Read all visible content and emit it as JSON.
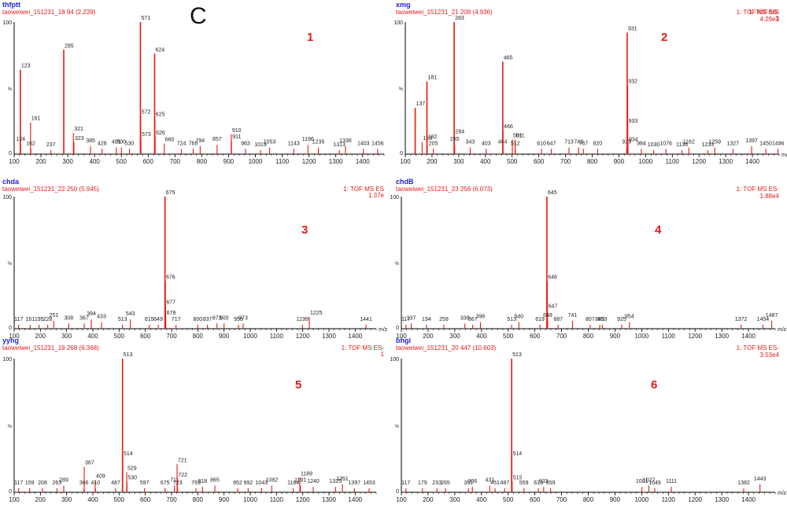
{
  "figure_letter": "C",
  "colors": {
    "blue": "#1f1fd6",
    "red": "#e41a1c",
    "peak": "#e8180c",
    "axis": "#000000",
    "text": "#222222"
  },
  "chart_data": [
    {
      "type": "bar",
      "sample": "thfptt",
      "file_label": "taoweiwei_151231_18 94 (2.239)",
      "scan_label": "",
      "scan_label2": "",
      "panel_number": "1",
      "yaxis_top": "100",
      "yaxis_mid": "%",
      "yaxis_zero": "0",
      "xunit": "",
      "xlim": [
        100,
        1480
      ],
      "ylim": [
        0,
        100
      ],
      "xticks": [
        100,
        200,
        300,
        400,
        500,
        600,
        700,
        800,
        900,
        1000,
        1100,
        1200,
        1300,
        1400
      ],
      "peaks": [
        {
          "x": 123,
          "y": 64
        },
        {
          "x": 124,
          "y": 7
        },
        {
          "x": 161,
          "y": 24
        },
        {
          "x": 162,
          "y": 4
        },
        {
          "x": 237,
          "y": 3
        },
        {
          "x": 285,
          "y": 79
        },
        {
          "x": 321,
          "y": 16
        },
        {
          "x": 323,
          "y": 9
        },
        {
          "x": 385,
          "y": 6
        },
        {
          "x": 428,
          "y": 4
        },
        {
          "x": 481,
          "y": 5
        },
        {
          "x": 500,
          "y": 5
        },
        {
          "x": 530,
          "y": 4
        },
        {
          "x": 571,
          "y": 100
        },
        {
          "x": 572,
          "y": 29
        },
        {
          "x": 573,
          "y": 12
        },
        {
          "x": 624,
          "y": 76
        },
        {
          "x": 625,
          "y": 27
        },
        {
          "x": 626,
          "y": 13
        },
        {
          "x": 660,
          "y": 8
        },
        {
          "x": 724,
          "y": 4
        },
        {
          "x": 768,
          "y": 4
        },
        {
          "x": 794,
          "y": 6
        },
        {
          "x": 857,
          "y": 7
        },
        {
          "x": 910,
          "y": 15
        },
        {
          "x": 911,
          "y": 10
        },
        {
          "x": 963,
          "y": 4
        },
        {
          "x": 1019,
          "y": 3
        },
        {
          "x": 1053,
          "y": 5
        },
        {
          "x": 1143,
          "y": 4
        },
        {
          "x": 1196,
          "y": 7
        },
        {
          "x": 1235,
          "y": 5
        },
        {
          "x": 1313,
          "y": 3
        },
        {
          "x": 1336,
          "y": 6
        },
        {
          "x": 1403,
          "y": 4
        },
        {
          "x": 1456,
          "y": 4
        }
      ]
    },
    {
      "type": "bar",
      "sample": "xmg",
      "file_label": "taoweiwei_151231_21 208 (4.936)",
      "scan_label": "1: TOF MS ",
      "scan_label2": "1",
      "tof_right": "1: TOF MS ES-",
      "intensity": "4.29e3",
      "panel_number": "2",
      "yaxis_top": "100",
      "yaxis_mid": "%",
      "yaxis_zero": "0",
      "xunit": "m/z",
      "xlim": [
        100,
        1500
      ],
      "ylim": [
        0,
        100
      ],
      "xticks": [
        100,
        200,
        300,
        400,
        500,
        600,
        700,
        800,
        900,
        1000,
        1100,
        1200,
        1300,
        1400
      ],
      "peaks": [
        {
          "x": 137,
          "y": 35
        },
        {
          "x": 163,
          "y": 9
        },
        {
          "x": 181,
          "y": 55
        },
        {
          "x": 182,
          "y": 10
        },
        {
          "x": 205,
          "y": 4
        },
        {
          "x": 283,
          "y": 100
        },
        {
          "x": 284,
          "y": 14
        },
        {
          "x": 285,
          "y": 7
        },
        {
          "x": 343,
          "y": 5
        },
        {
          "x": 403,
          "y": 4
        },
        {
          "x": 464,
          "y": 5
        },
        {
          "x": 465,
          "y": 70
        },
        {
          "x": 466,
          "y": 18
        },
        {
          "x": 501,
          "y": 11
        },
        {
          "x": 511,
          "y": 11
        },
        {
          "x": 512,
          "y": 4
        },
        {
          "x": 610,
          "y": 4
        },
        {
          "x": 647,
          "y": 4
        },
        {
          "x": 713,
          "y": 5
        },
        {
          "x": 749,
          "y": 5
        },
        {
          "x": 767,
          "y": 4
        },
        {
          "x": 820,
          "y": 4
        },
        {
          "x": 929,
          "y": 5
        },
        {
          "x": 931,
          "y": 92
        },
        {
          "x": 932,
          "y": 52
        },
        {
          "x": 933,
          "y": 22
        },
        {
          "x": 934,
          "y": 8
        },
        {
          "x": 984,
          "y": 4
        },
        {
          "x": 1030,
          "y": 3
        },
        {
          "x": 1076,
          "y": 4
        },
        {
          "x": 1136,
          "y": 3
        },
        {
          "x": 1162,
          "y": 5
        },
        {
          "x": 1233,
          "y": 3
        },
        {
          "x": 1259,
          "y": 5
        },
        {
          "x": 1327,
          "y": 4
        },
        {
          "x": 1397,
          "y": 6
        },
        {
          "x": 1450,
          "y": 4
        },
        {
          "x": 1496,
          "y": 4
        }
      ]
    },
    {
      "type": "bar",
      "sample": "chda",
      "file_label": "taoweiwei_151231_22 250 (5.945)",
      "scan_label": "1: TOF MS ES",
      "scan_label2": "1.37e",
      "panel_number": "3",
      "yaxis_top": "100",
      "yaxis_mid": "%",
      "yaxis_zero": "0",
      "xunit": "m/z",
      "xlim": [
        100,
        1480
      ],
      "ylim": [
        0,
        100
      ],
      "xticks": [
        100,
        200,
        300,
        400,
        500,
        600,
        700,
        800,
        900,
        1000,
        1100,
        1200,
        1300,
        1400
      ],
      "peaks": [
        {
          "x": 117,
          "y": 3
        },
        {
          "x": 161,
          "y": 3
        },
        {
          "x": 195,
          "y": 3
        },
        {
          "x": 228,
          "y": 3
        },
        {
          "x": 251,
          "y": 6
        },
        {
          "x": 308,
          "y": 4
        },
        {
          "x": 367,
          "y": 4
        },
        {
          "x": 394,
          "y": 7
        },
        {
          "x": 433,
          "y": 5
        },
        {
          "x": 513,
          "y": 3
        },
        {
          "x": 543,
          "y": 7
        },
        {
          "x": 615,
          "y": 3
        },
        {
          "x": 649,
          "y": 3
        },
        {
          "x": 675,
          "y": 100
        },
        {
          "x": 676,
          "y": 36
        },
        {
          "x": 677,
          "y": 17
        },
        {
          "x": 678,
          "y": 9
        },
        {
          "x": 717,
          "y": 3
        },
        {
          "x": 800,
          "y": 3
        },
        {
          "x": 837,
          "y": 3
        },
        {
          "x": 873,
          "y": 4
        },
        {
          "x": 900,
          "y": 4
        },
        {
          "x": 955,
          "y": 3
        },
        {
          "x": 973,
          "y": 4
        },
        {
          "x": 1199,
          "y": 3
        },
        {
          "x": 1225,
          "y": 9
        },
        {
          "x": 1441,
          "y": 3
        }
      ]
    },
    {
      "type": "bar",
      "sample": "chdB",
      "file_label": "taoweiwei_151231_23 256 (6.073)",
      "scan_label": "",
      "scan_label2": "",
      "tof_right": "1: TOF MS ES-",
      "intensity": "1.88e4",
      "panel_number": "4",
      "yaxis_top": "100",
      "yaxis_mid": "%",
      "yaxis_zero": "0",
      "xunit": "m/z",
      "xlim": [
        100,
        1500
      ],
      "ylim": [
        0,
        100
      ],
      "xticks": [
        100,
        200,
        300,
        400,
        500,
        600,
        700,
        800,
        900,
        1000,
        1100,
        1200,
        1300,
        1400
      ],
      "peaks": [
        {
          "x": 117,
          "y": 3
        },
        {
          "x": 137,
          "y": 4
        },
        {
          "x": 194,
          "y": 3
        },
        {
          "x": 259,
          "y": 3
        },
        {
          "x": 338,
          "y": 4
        },
        {
          "x": 367,
          "y": 3
        },
        {
          "x": 396,
          "y": 5
        },
        {
          "x": 513,
          "y": 3
        },
        {
          "x": 540,
          "y": 5
        },
        {
          "x": 619,
          "y": 3
        },
        {
          "x": 645,
          "y": 100
        },
        {
          "x": 646,
          "y": 36
        },
        {
          "x": 647,
          "y": 14
        },
        {
          "x": 648,
          "y": 6
        },
        {
          "x": 687,
          "y": 3
        },
        {
          "x": 741,
          "y": 6
        },
        {
          "x": 807,
          "y": 3
        },
        {
          "x": 843,
          "y": 3
        },
        {
          "x": 853,
          "y": 3
        },
        {
          "x": 925,
          "y": 3
        },
        {
          "x": 954,
          "y": 5
        },
        {
          "x": 1372,
          "y": 3
        },
        {
          "x": 1454,
          "y": 3
        },
        {
          "x": 1487,
          "y": 6
        }
      ]
    },
    {
      "type": "bar",
      "sample": "yyhg",
      "file_label": "taoweiwei_151231_19 268 (6.368)",
      "scan_label": "1: TOF MS ES-",
      "scan_label2": "1",
      "panel_number": "5",
      "yaxis_top": "100",
      "yaxis_mid": "%",
      "yaxis_zero": "0",
      "xunit": "",
      "xlim": [
        100,
        1480
      ],
      "ylim": [
        0,
        100
      ],
      "xticks": [
        100,
        200,
        300,
        400,
        500,
        600,
        700,
        800,
        900,
        1000,
        1100,
        1200,
        1300,
        1400
      ],
      "peaks": [
        {
          "x": 117,
          "y": 3
        },
        {
          "x": 159,
          "y": 3
        },
        {
          "x": 208,
          "y": 3
        },
        {
          "x": 263,
          "y": 3
        },
        {
          "x": 289,
          "y": 5
        },
        {
          "x": 366,
          "y": 3
        },
        {
          "x": 367,
          "y": 19
        },
        {
          "x": 409,
          "y": 9
        },
        {
          "x": 410,
          "y": 3
        },
        {
          "x": 487,
          "y": 3
        },
        {
          "x": 513,
          "y": 100
        },
        {
          "x": 514,
          "y": 26
        },
        {
          "x": 529,
          "y": 15
        },
        {
          "x": 530,
          "y": 8
        },
        {
          "x": 597,
          "y": 3
        },
        {
          "x": 675,
          "y": 3
        },
        {
          "x": 711,
          "y": 5
        },
        {
          "x": 721,
          "y": 21
        },
        {
          "x": 722,
          "y": 10
        },
        {
          "x": 723,
          "y": 3
        },
        {
          "x": 793,
          "y": 3
        },
        {
          "x": 818,
          "y": 4
        },
        {
          "x": 865,
          "y": 5
        },
        {
          "x": 952,
          "y": 3
        },
        {
          "x": 992,
          "y": 3
        },
        {
          "x": 1043,
          "y": 3
        },
        {
          "x": 1082,
          "y": 5
        },
        {
          "x": 1164,
          "y": 3
        },
        {
          "x": 1189,
          "y": 11
        },
        {
          "x": 1191,
          "y": 5
        },
        {
          "x": 1240,
          "y": 4
        },
        {
          "x": 1325,
          "y": 4
        },
        {
          "x": 1351,
          "y": 6
        },
        {
          "x": 1397,
          "y": 3
        },
        {
          "x": 1453,
          "y": 3
        }
      ]
    },
    {
      "type": "bar",
      "sample": "bhgi",
      "file_label": "taoweiwei_151231_20 447 (10.603)",
      "scan_label": "",
      "scan_label2": "",
      "tof_right": "1: TOF MS ES-",
      "intensity": "3.53e4",
      "panel_number": "6",
      "yaxis_top": "100",
      "yaxis_mid": "%",
      "yaxis_zero": "0",
      "xunit": "m/z",
      "xlim": [
        100,
        1500
      ],
      "ylim": [
        0,
        100
      ],
      "xticks": [
        100,
        200,
        300,
        400,
        500,
        600,
        700,
        800,
        900,
        1000,
        1100,
        1200,
        1300,
        1400
      ],
      "peaks": [
        {
          "x": 117,
          "y": 3
        },
        {
          "x": 179,
          "y": 3
        },
        {
          "x": 233,
          "y": 3
        },
        {
          "x": 265,
          "y": 3
        },
        {
          "x": 351,
          "y": 3
        },
        {
          "x": 366,
          "y": 4
        },
        {
          "x": 431,
          "y": 5
        },
        {
          "x": 451,
          "y": 3
        },
        {
          "x": 487,
          "y": 3
        },
        {
          "x": 513,
          "y": 100
        },
        {
          "x": 514,
          "y": 26
        },
        {
          "x": 515,
          "y": 8
        },
        {
          "x": 559,
          "y": 3
        },
        {
          "x": 613,
          "y": 3
        },
        {
          "x": 633,
          "y": 4
        },
        {
          "x": 659,
          "y": 3
        },
        {
          "x": 1001,
          "y": 4
        },
        {
          "x": 1027,
          "y": 5
        },
        {
          "x": 1049,
          "y": 3
        },
        {
          "x": 1111,
          "y": 4
        },
        {
          "x": 1382,
          "y": 3
        },
        {
          "x": 1443,
          "y": 6
        }
      ]
    }
  ]
}
